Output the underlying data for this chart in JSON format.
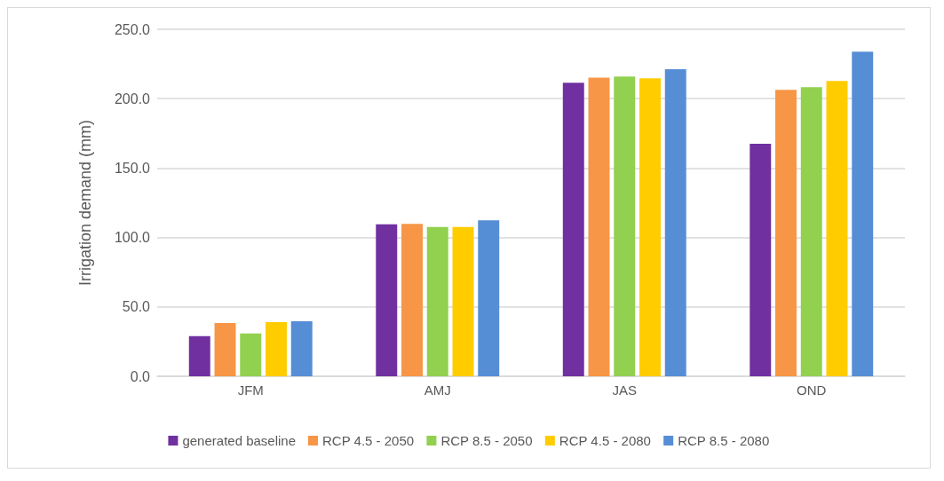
{
  "chart_data": {
    "type": "bar",
    "ylabel": "Irrigation demand (mm)",
    "categories": [
      "JFM",
      "AMJ",
      "JAS",
      "OND"
    ],
    "series": [
      {
        "name": "generated baseline",
        "color": "#7030a0",
        "values": [
          28.9,
          109.5,
          211.5,
          167.5
        ]
      },
      {
        "name": "RCP 4.5 - 2050",
        "color": "#f79646",
        "values": [
          38.4,
          109.8,
          215.2,
          206.4
        ]
      },
      {
        "name": "RCP 8.5 - 2050",
        "color": "#92d050",
        "values": [
          30.8,
          107.6,
          215.9,
          208.3
        ]
      },
      {
        "name": "RCP 4.5 - 2080",
        "color": "#ffcc00",
        "values": [
          39.0,
          107.6,
          214.6,
          212.7
        ]
      },
      {
        "name": "RCP 8.5 - 2080",
        "color": "#558ed5",
        "values": [
          39.7,
          112.4,
          221.3,
          233.9
        ]
      }
    ],
    "ylim": [
      0,
      250
    ],
    "yticks": [
      {
        "value": 0,
        "label": "0.0"
      },
      {
        "value": 50,
        "label": "50.0"
      },
      {
        "value": 100,
        "label": "100.0"
      },
      {
        "value": 150,
        "label": "150.0"
      },
      {
        "value": 200,
        "label": "200.0"
      },
      {
        "value": 250,
        "label": "250.0"
      }
    ],
    "grid": "y",
    "legend": "bottom"
  }
}
